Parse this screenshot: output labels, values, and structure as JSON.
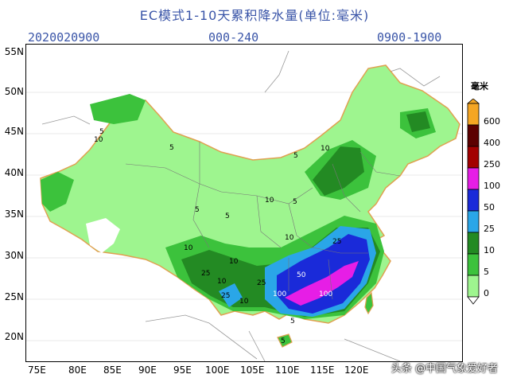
{
  "header": {
    "title": "EC模式1-10天累积降水量(单位:毫米)",
    "date": "2020020900",
    "range": "000-240",
    "time": "0900-1900"
  },
  "axes": {
    "lat_labels": [
      "55N",
      "50N",
      "45N",
      "40N",
      "35N",
      "30N",
      "25N",
      "20N"
    ],
    "lon_labels": [
      "75E",
      "80E",
      "85E",
      "90E",
      "95E",
      "100E",
      "105E",
      "110E",
      "115E",
      "120E"
    ]
  },
  "colorbar": {
    "unit": "毫米",
    "levels": [
      "0",
      "5",
      "10",
      "25",
      "50",
      "100",
      "250",
      "400",
      "600"
    ],
    "colors": [
      "#9ef58f",
      "#3cc23c",
      "#238a23",
      "#2aa6e8",
      "#1a2ad9",
      "#e61ee6",
      "#a30000",
      "#5c0000",
      "#f5a623"
    ]
  },
  "contour_labels": [
    {
      "text": "5"
    },
    {
      "text": "10"
    },
    {
      "text": "5"
    },
    {
      "text": "5"
    },
    {
      "text": "10"
    },
    {
      "text": "5"
    },
    {
      "text": "5"
    },
    {
      "text": "10"
    },
    {
      "text": "5"
    },
    {
      "text": "10"
    },
    {
      "text": "25"
    },
    {
      "text": "10"
    },
    {
      "text": "10"
    },
    {
      "text": "25"
    },
    {
      "text": "50"
    },
    {
      "text": "100"
    },
    {
      "text": "100"
    },
    {
      "text": "25"
    },
    {
      "text": "10"
    },
    {
      "text": "5"
    },
    {
      "text": "25"
    },
    {
      "text": "10"
    },
    {
      "text": "5"
    }
  ],
  "watermark": "头条 @中国气象爱好者"
}
